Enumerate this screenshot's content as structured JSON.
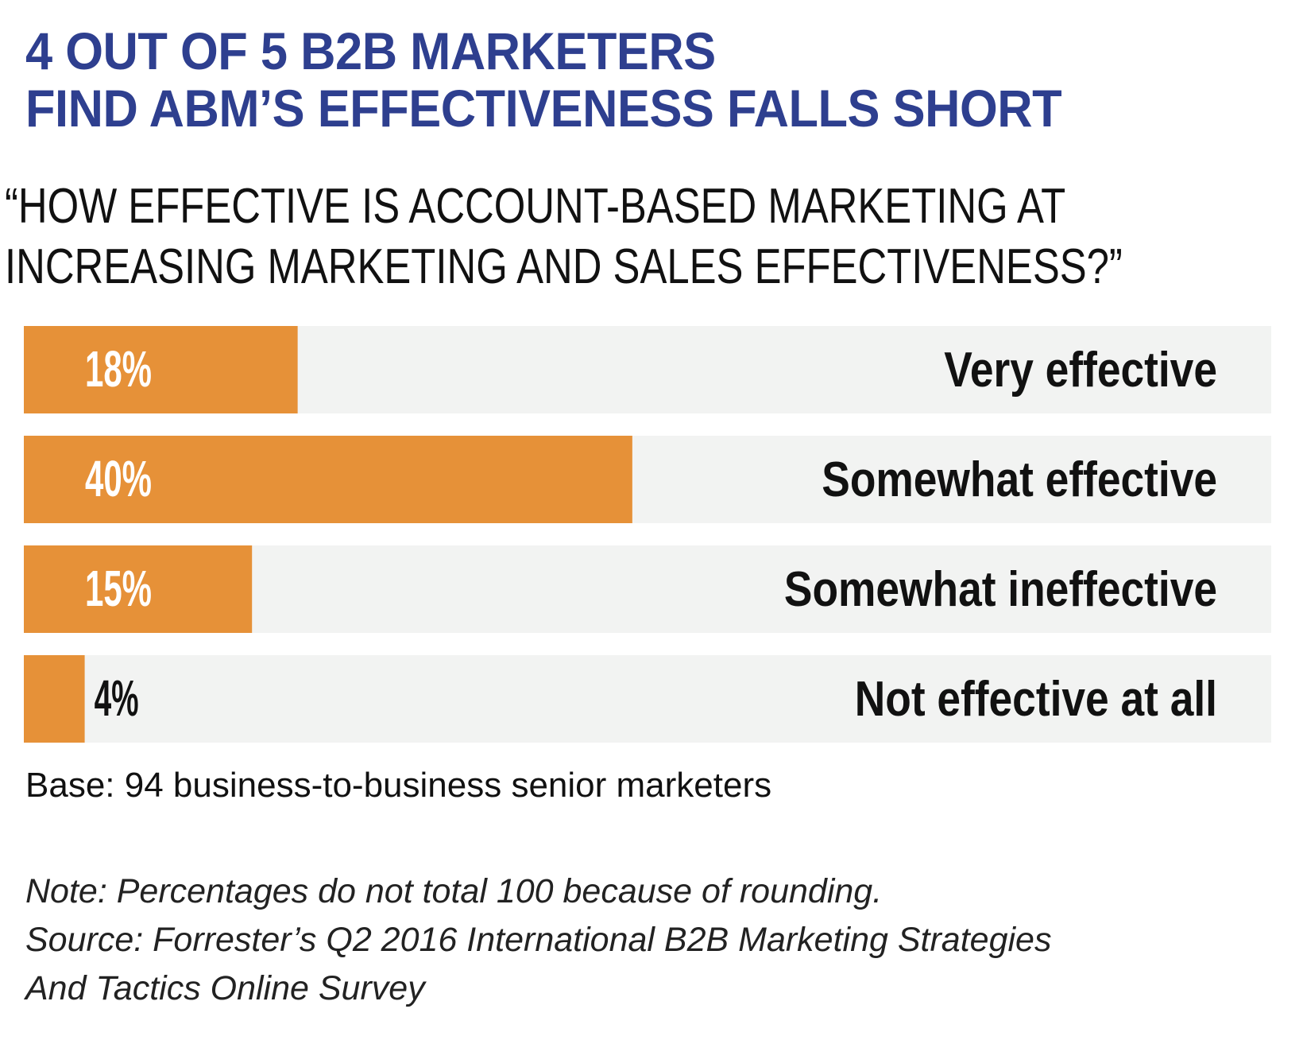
{
  "header": {
    "title_lines": [
      "4 OUT OF 5 B2B MARKETERS",
      "FIND ABM’S EFFECTIVENESS FALLS SHORT"
    ],
    "question_lines": [
      "“HOW EFFECTIVE IS ACCOUNT-BASED MARKETING AT",
      " INCREASING MARKETING AND SALES EFFECTIVENESS?”"
    ]
  },
  "chart_data": {
    "type": "bar",
    "orientation": "horizontal",
    "categories": [
      "Very effective",
      "Somewhat effective",
      "Somewhat ineffective",
      "Not effective at all"
    ],
    "values": [
      18,
      40,
      15,
      4
    ],
    "value_labels": [
      "18%",
      "40%",
      "15%",
      "4%"
    ],
    "xlim": [
      0,
      82
    ],
    "grid": false,
    "legend": "none",
    "colors": {
      "bar": "#e69138",
      "track": "#f2f3f2",
      "label_on_bar": "#ffffff",
      "label_off_bar": "#111111"
    }
  },
  "notes": {
    "base": "Base: 94 business-to-business senior marketers",
    "footnote_lines": [
      "Note: Percentages do not total 100 because of rounding.",
      "Source: Forrester’s Q2 2016 International B2B Marketing Strategies",
      "And Tactics Online Survey"
    ]
  }
}
